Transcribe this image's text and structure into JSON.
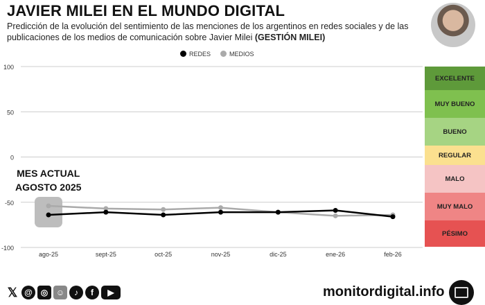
{
  "header": {
    "title": "JAVIER MILEI EN EL MUNDO DIGITAL",
    "subtitle": "Predicción de la evolución del sentimiento de las menciones de los argentinos en redes sociales y de las publicaciones de los medios de comunicación sobre Javier Milei",
    "subtitle_bold": "(GESTIÓN MILEI)"
  },
  "annotation": {
    "line1": "MES ACTUAL",
    "line2": "AGOSTO 2025"
  },
  "scale": [
    {
      "label": "EXCELENTE",
      "color": "#5e9a3a"
    },
    {
      "label": "MUY BUENO",
      "color": "#7fc04f"
    },
    {
      "label": "BUENO",
      "color": "#a6d483"
    },
    {
      "label": "REGULAR",
      "color": "#fbe08f"
    },
    {
      "label": "MALO",
      "color": "#f5c4c4"
    },
    {
      "label": "MUY MALO",
      "color": "#ef8585"
    },
    {
      "label": "PÉSIMO",
      "color": "#e65252"
    }
  ],
  "footer": {
    "site": "monitordigital.info",
    "social_icons": [
      "x-icon",
      "threads-icon",
      "instagram-icon",
      "reddit-icon",
      "tiktok-icon",
      "facebook-icon",
      "youtube-icon"
    ]
  },
  "chart_data": {
    "type": "line",
    "title": "JAVIER MILEI EN EL MUNDO DIGITAL",
    "categories": [
      "ago-25",
      "sept-25",
      "oct-25",
      "nov-25",
      "dic-25",
      "ene-26",
      "feb-26"
    ],
    "series": [
      {
        "name": "REDES",
        "color": "#000000",
        "values": [
          -64,
          -61,
          -64,
          -61,
          -61,
          -59,
          -66
        ]
      },
      {
        "name": "MEDIOS",
        "color": "#aaaaaa",
        "values": [
          -54,
          -57,
          -58,
          -56,
          -61,
          -65,
          -64
        ]
      }
    ],
    "yticks": [
      "100",
      "50",
      "0",
      "-50",
      "-100"
    ],
    "ylim": [
      -100,
      100
    ],
    "legend": "top-center",
    "highlight_category": "ago-25"
  }
}
